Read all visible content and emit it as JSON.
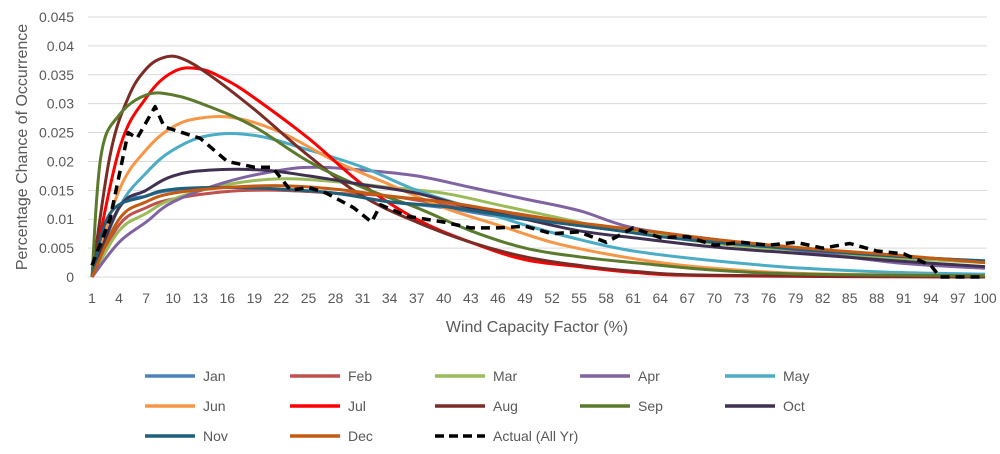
{
  "chart_data": {
    "type": "line",
    "title": "",
    "xlabel": "Wind Capacity Factor (%)",
    "ylabel": "Percentage Chance of Occurrence",
    "xlim": [
      1,
      100
    ],
    "ylim": [
      0,
      0.045
    ],
    "grid": "horizontal",
    "legend_position": "bottom",
    "y_ticks": [
      "0",
      "0.005",
      "0.01",
      "0.015",
      "0.02",
      "0.025",
      "0.03",
      "0.035",
      "0.04",
      "0.045"
    ],
    "x_ticks": [
      "1",
      "4",
      "7",
      "10",
      "13",
      "16",
      "19",
      "22",
      "25",
      "28",
      "31",
      "34",
      "37",
      "40",
      "43",
      "46",
      "49",
      "52",
      "55",
      "58",
      "61",
      "64",
      "67",
      "70",
      "73",
      "76",
      "79",
      "82",
      "85",
      "88",
      "91",
      "94",
      "97",
      "100"
    ],
    "series": [
      {
        "name": "Jan",
        "color": "#4F81BD",
        "dashed": false,
        "points": [
          [
            1,
            0
          ],
          [
            4,
            0.012
          ],
          [
            7,
            0.014
          ],
          [
            10,
            0.015
          ],
          [
            16,
            0.0155
          ],
          [
            22,
            0.015
          ],
          [
            28,
            0.0145
          ],
          [
            34,
            0.013
          ],
          [
            40,
            0.012
          ],
          [
            46,
            0.0105
          ],
          [
            52,
            0.0095
          ],
          [
            58,
            0.0083
          ],
          [
            64,
            0.0072
          ],
          [
            70,
            0.006
          ],
          [
            80,
            0.0046
          ],
          [
            90,
            0.0036
          ],
          [
            100,
            0.0027
          ]
        ]
      },
      {
        "name": "Feb",
        "color": "#C0504D",
        "dashed": false,
        "points": [
          [
            1,
            0
          ],
          [
            4,
            0.009
          ],
          [
            7,
            0.012
          ],
          [
            10,
            0.0135
          ],
          [
            16,
            0.0148
          ],
          [
            22,
            0.015
          ],
          [
            28,
            0.0145
          ],
          [
            34,
            0.014
          ],
          [
            40,
            0.0125
          ],
          [
            46,
            0.011
          ],
          [
            52,
            0.0098
          ],
          [
            58,
            0.0085
          ],
          [
            64,
            0.0073
          ],
          [
            70,
            0.006
          ],
          [
            80,
            0.0046
          ],
          [
            90,
            0.0036
          ],
          [
            100,
            0.0027
          ]
        ]
      },
      {
        "name": "Mar",
        "color": "#9BBB59",
        "dashed": false,
        "points": [
          [
            1,
            0
          ],
          [
            4,
            0.008
          ],
          [
            7,
            0.011
          ],
          [
            10,
            0.0135
          ],
          [
            16,
            0.016
          ],
          [
            22,
            0.017
          ],
          [
            28,
            0.0165
          ],
          [
            34,
            0.0155
          ],
          [
            40,
            0.0145
          ],
          [
            46,
            0.0125
          ],
          [
            52,
            0.0105
          ],
          [
            58,
            0.0085
          ],
          [
            64,
            0.0072
          ],
          [
            70,
            0.0058
          ],
          [
            80,
            0.0045
          ],
          [
            90,
            0.0033
          ],
          [
            100,
            0.0025
          ]
        ]
      },
      {
        "name": "Apr",
        "color": "#8064A2",
        "dashed": false,
        "points": [
          [
            1,
            0
          ],
          [
            4,
            0.006
          ],
          [
            7,
            0.0095
          ],
          [
            10,
            0.013
          ],
          [
            16,
            0.0165
          ],
          [
            22,
            0.0185
          ],
          [
            26,
            0.019
          ],
          [
            31,
            0.0185
          ],
          [
            37,
            0.0175
          ],
          [
            43,
            0.0155
          ],
          [
            49,
            0.0135
          ],
          [
            55,
            0.0115
          ],
          [
            61,
            0.0085
          ],
          [
            70,
            0.0065
          ],
          [
            80,
            0.0045
          ],
          [
            90,
            0.0025
          ],
          [
            100,
            0.0015
          ]
        ]
      },
      {
        "name": "May",
        "color": "#4BACC6",
        "dashed": false,
        "points": [
          [
            1,
            0
          ],
          [
            4,
            0.012
          ],
          [
            7,
            0.018
          ],
          [
            10,
            0.022
          ],
          [
            14,
            0.0245
          ],
          [
            19,
            0.0245
          ],
          [
            25,
            0.022
          ],
          [
            31,
            0.019
          ],
          [
            37,
            0.015
          ],
          [
            43,
            0.012
          ],
          [
            49,
            0.009
          ],
          [
            55,
            0.0065
          ],
          [
            61,
            0.0045
          ],
          [
            70,
            0.0028
          ],
          [
            80,
            0.0015
          ],
          [
            90,
            0.0008
          ],
          [
            100,
            0.0005
          ]
        ]
      },
      {
        "name": "Jun",
        "color": "#F79646",
        "dashed": false,
        "points": [
          [
            1,
            0
          ],
          [
            4,
            0.015
          ],
          [
            7,
            0.022
          ],
          [
            10,
            0.026
          ],
          [
            13,
            0.0275
          ],
          [
            17,
            0.0275
          ],
          [
            22,
            0.025
          ],
          [
            28,
            0.02
          ],
          [
            34,
            0.016
          ],
          [
            40,
            0.012
          ],
          [
            46,
            0.009
          ],
          [
            52,
            0.006
          ],
          [
            58,
            0.004
          ],
          [
            64,
            0.0025
          ],
          [
            70,
            0.0015
          ],
          [
            80,
            0.0006
          ],
          [
            100,
            0.0002
          ]
        ]
      },
      {
        "name": "Jul",
        "color": "#FF0000",
        "dashed": false,
        "points": [
          [
            1,
            0
          ],
          [
            4,
            0.022
          ],
          [
            7,
            0.031
          ],
          [
            10,
            0.0355
          ],
          [
            13,
            0.036
          ],
          [
            16,
            0.034
          ],
          [
            19,
            0.031
          ],
          [
            25,
            0.024
          ],
          [
            31,
            0.016
          ],
          [
            37,
            0.01
          ],
          [
            43,
            0.006
          ],
          [
            49,
            0.003
          ],
          [
            55,
            0.0018
          ],
          [
            61,
            0.0008
          ],
          [
            70,
            0.0002
          ],
          [
            100,
            0
          ]
        ]
      },
      {
        "name": "Aug",
        "color": "#7B2C26",
        "dashed": false,
        "points": [
          [
            1,
            0
          ],
          [
            3,
            0.021
          ],
          [
            5,
            0.031
          ],
          [
            7,
            0.036
          ],
          [
            9,
            0.038
          ],
          [
            11,
            0.0378
          ],
          [
            14,
            0.035
          ],
          [
            19,
            0.029
          ],
          [
            25,
            0.021
          ],
          [
            31,
            0.014
          ],
          [
            37,
            0.0095
          ],
          [
            43,
            0.006
          ],
          [
            49,
            0.0035
          ],
          [
            55,
            0.002
          ],
          [
            61,
            0.001
          ],
          [
            70,
            0.0003
          ],
          [
            100,
            0
          ]
        ]
      },
      {
        "name": "Sep",
        "color": "#5B7A2E",
        "dashed": false,
        "points": [
          [
            1,
            0
          ],
          [
            2,
            0.021
          ],
          [
            4,
            0.028
          ],
          [
            7,
            0.0315
          ],
          [
            10,
            0.0315
          ],
          [
            14,
            0.0295
          ],
          [
            19,
            0.026
          ],
          [
            25,
            0.02
          ],
          [
            31,
            0.0155
          ],
          [
            37,
            0.012
          ],
          [
            43,
            0.008
          ],
          [
            49,
            0.005
          ],
          [
            55,
            0.0035
          ],
          [
            61,
            0.0025
          ],
          [
            70,
            0.0012
          ],
          [
            80,
            0.0005
          ],
          [
            100,
            0.0002
          ]
        ]
      },
      {
        "name": "Oct",
        "color": "#403152",
        "dashed": false,
        "points": [
          [
            1,
            0
          ],
          [
            4,
            0.012
          ],
          [
            7,
            0.015
          ],
          [
            10,
            0.0175
          ],
          [
            14,
            0.0185
          ],
          [
            20,
            0.0185
          ],
          [
            25,
            0.0175
          ],
          [
            31,
            0.016
          ],
          [
            37,
            0.0145
          ],
          [
            43,
            0.012
          ],
          [
            49,
            0.01
          ],
          [
            55,
            0.008
          ],
          [
            61,
            0.0068
          ],
          [
            70,
            0.0052
          ],
          [
            80,
            0.004
          ],
          [
            90,
            0.0028
          ],
          [
            100,
            0.0018
          ]
        ]
      },
      {
        "name": "Nov",
        "color": "#1F5F7A",
        "dashed": false,
        "points": [
          [
            1,
            0
          ],
          [
            3,
            0.011
          ],
          [
            7,
            0.014
          ],
          [
            10,
            0.0152
          ],
          [
            16,
            0.0155
          ],
          [
            22,
            0.0152
          ],
          [
            28,
            0.0145
          ],
          [
            34,
            0.013
          ],
          [
            40,
            0.0122
          ],
          [
            46,
            0.0108
          ],
          [
            52,
            0.0095
          ],
          [
            58,
            0.0083
          ],
          [
            64,
            0.007
          ],
          [
            70,
            0.006
          ],
          [
            80,
            0.0047
          ],
          [
            90,
            0.0036
          ],
          [
            100,
            0.0028
          ]
        ]
      },
      {
        "name": "Dec",
        "color": "#C55A11",
        "dashed": false,
        "points": [
          [
            1,
            0
          ],
          [
            4,
            0.01
          ],
          [
            7,
            0.013
          ],
          [
            10,
            0.0145
          ],
          [
            16,
            0.0155
          ],
          [
            22,
            0.0158
          ],
          [
            28,
            0.0152
          ],
          [
            34,
            0.014
          ],
          [
            40,
            0.013
          ],
          [
            46,
            0.0115
          ],
          [
            52,
            0.01
          ],
          [
            58,
            0.0088
          ],
          [
            64,
            0.0077
          ],
          [
            70,
            0.0065
          ],
          [
            80,
            0.005
          ],
          [
            90,
            0.0038
          ],
          [
            100,
            0.0025
          ]
        ]
      },
      {
        "name": "Actual (All Yr)",
        "color": "#000000",
        "dashed": true,
        "points": [
          [
            1,
            0.002
          ],
          [
            3,
            0.01
          ],
          [
            5,
            0.025
          ],
          [
            6,
            0.024
          ],
          [
            8,
            0.0295
          ],
          [
            9,
            0.026
          ],
          [
            11,
            0.025
          ],
          [
            13,
            0.024
          ],
          [
            16,
            0.02
          ],
          [
            19,
            0.019
          ],
          [
            21,
            0.019
          ],
          [
            23,
            0.015
          ],
          [
            25,
            0.0155
          ],
          [
            27,
            0.0145
          ],
          [
            30,
            0.012
          ],
          [
            32,
            0.0095
          ],
          [
            33,
            0.0125
          ],
          [
            36,
            0.0105
          ],
          [
            40,
            0.0095
          ],
          [
            43,
            0.0085
          ],
          [
            46,
            0.0085
          ],
          [
            49,
            0.0088
          ],
          [
            52,
            0.0075
          ],
          [
            55,
            0.0078
          ],
          [
            58,
            0.006
          ],
          [
            61,
            0.0085
          ],
          [
            64,
            0.0068
          ],
          [
            67,
            0.007
          ],
          [
            70,
            0.0055
          ],
          [
            73,
            0.006
          ],
          [
            76,
            0.0055
          ],
          [
            79,
            0.006
          ],
          [
            82,
            0.005
          ],
          [
            85,
            0.0058
          ],
          [
            88,
            0.0045
          ],
          [
            91,
            0.004
          ],
          [
            94,
            0.002
          ],
          [
            95,
            0
          ],
          [
            100,
            0
          ]
        ]
      }
    ]
  }
}
